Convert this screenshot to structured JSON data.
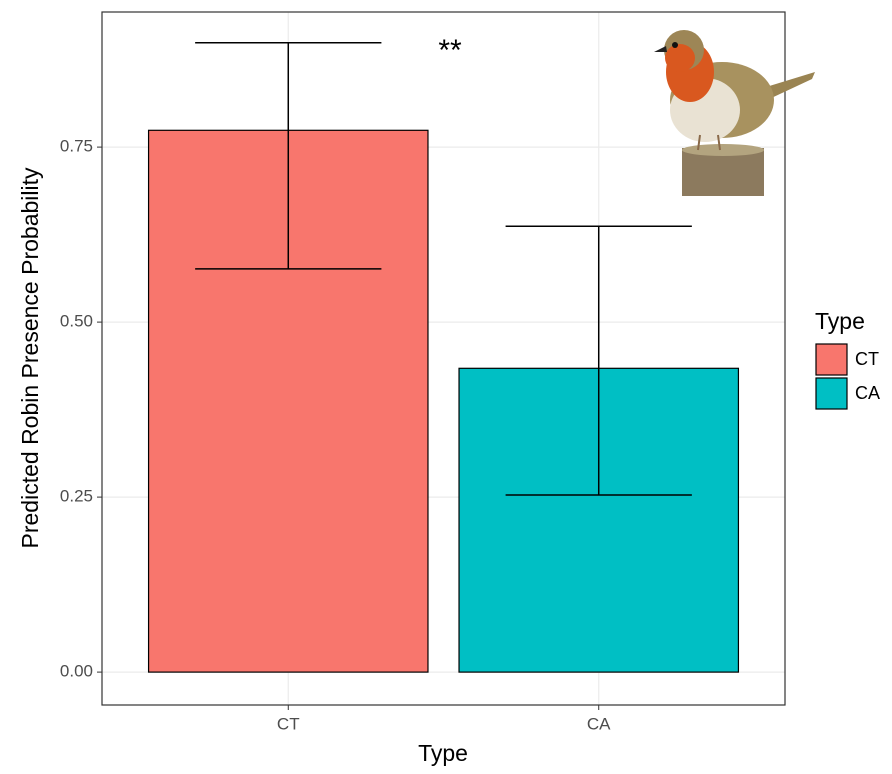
{
  "chart_data": {
    "type": "bar",
    "x_label": "Type",
    "y_label": "Predicted Robin Presence Probability",
    "annotation": "**",
    "legend_title": "Type",
    "categories": [
      "CT",
      "CA"
    ],
    "values": [
      0.774,
      0.434
    ],
    "lower": [
      0.576,
      0.253
    ],
    "upper": [
      0.899,
      0.637
    ],
    "colors": [
      "#f8766d",
      "#00bfc4"
    ],
    "ylim": [
      -0.047,
      0.943
    ],
    "yticks": [
      {
        "value": 0,
        "label": "0.00"
      },
      {
        "value": 0.25,
        "label": "0.25"
      },
      {
        "value": 0.5,
        "label": "0.50"
      },
      {
        "value": 0.75,
        "label": "0.75"
      }
    ],
    "grid": true,
    "legend": "right"
  }
}
